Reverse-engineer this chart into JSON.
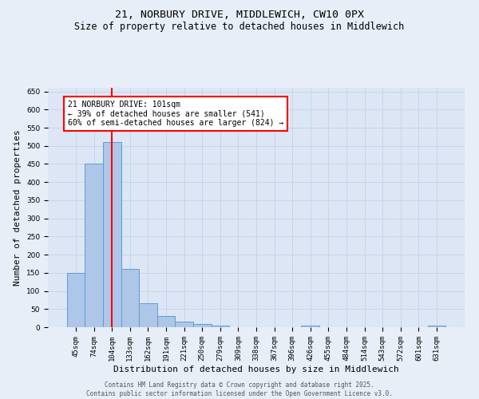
{
  "title_line1": "21, NORBURY DRIVE, MIDDLEWICH, CW10 0PX",
  "title_line2": "Size of property relative to detached houses in Middlewich",
  "xlabel": "Distribution of detached houses by size in Middlewich",
  "ylabel": "Number of detached properties",
  "categories": [
    "45sqm",
    "74sqm",
    "104sqm",
    "133sqm",
    "162sqm",
    "191sqm",
    "221sqm",
    "250sqm",
    "279sqm",
    "309sqm",
    "338sqm",
    "367sqm",
    "396sqm",
    "426sqm",
    "455sqm",
    "484sqm",
    "514sqm",
    "543sqm",
    "572sqm",
    "601sqm",
    "631sqm"
  ],
  "values": [
    150,
    450,
    510,
    160,
    65,
    30,
    15,
    8,
    4,
    0,
    0,
    0,
    0,
    4,
    0,
    0,
    0,
    0,
    0,
    0,
    4
  ],
  "bar_color": "#aec6e8",
  "bar_edge_color": "#5a9fd4",
  "grid_color": "#c8d4e8",
  "background_color": "#dce6f5",
  "fig_background_color": "#e8eef8",
  "red_line_index": 2,
  "annotation_text_line1": "21 NORBURY DRIVE: 101sqm",
  "annotation_text_line2": "← 39% of detached houses are smaller (541)",
  "annotation_text_line3": "60% of semi-detached houses are larger (824) →",
  "ylim": [
    0,
    660
  ],
  "yticks": [
    0,
    50,
    100,
    150,
    200,
    250,
    300,
    350,
    400,
    450,
    500,
    550,
    600,
    650
  ],
  "footer_line1": "Contains HM Land Registry data © Crown copyright and database right 2025.",
  "footer_line2": "Contains public sector information licensed under the Open Government Licence v3.0.",
  "title_fontsize": 9.5,
  "subtitle_fontsize": 8.5,
  "axis_label_fontsize": 8,
  "tick_fontsize": 6.5,
  "annotation_fontsize": 7,
  "footer_fontsize": 5.5
}
